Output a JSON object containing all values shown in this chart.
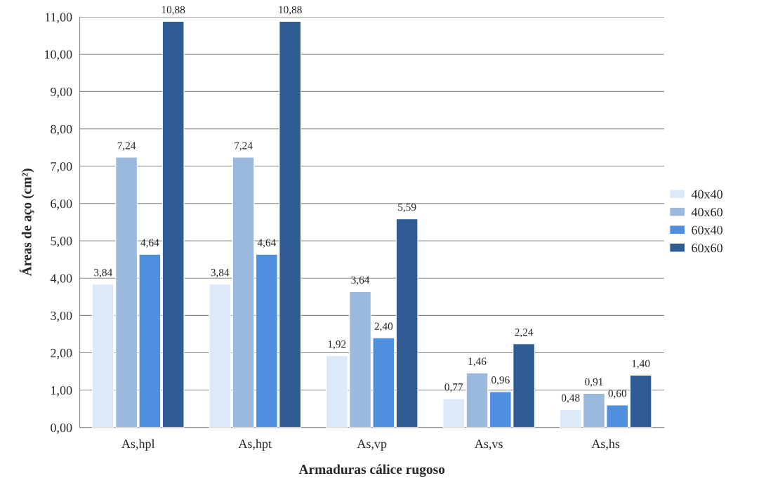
{
  "chart_data": {
    "type": "bar",
    "xlabel": "Armaduras cálice rugoso",
    "ylabel": "Áreas de aço (cm²)",
    "categories": [
      "As,hpl",
      "As,hpt",
      "As,vp",
      "As,vs",
      "As,hs"
    ],
    "series": [
      {
        "name": "40x40",
        "color": "#dce9f8",
        "values": [
          3.84,
          3.84,
          1.92,
          0.77,
          0.48
        ],
        "value_labels": [
          "3,84",
          "3,84",
          "1,92",
          "0,77",
          "0,48"
        ]
      },
      {
        "name": "40x60",
        "color": "#9bb8dd",
        "values": [
          7.24,
          7.24,
          3.64,
          1.46,
          0.91
        ],
        "value_labels": [
          "7,24",
          "7,24",
          "3,64",
          "1,46",
          "0,91"
        ]
      },
      {
        "name": "60x40",
        "color": "#4f8fe0",
        "values": [
          4.64,
          4.64,
          2.4,
          0.96,
          0.6
        ],
        "value_labels": [
          "4,64",
          "4,64",
          "2,40",
          "0,96",
          "0,60"
        ]
      },
      {
        "name": "60x60",
        "color": "#2f5c94",
        "values": [
          10.88,
          10.88,
          5.59,
          2.24,
          1.4
        ],
        "value_labels": [
          "10,88",
          "10,88",
          "5,59",
          "2,24",
          "1,40"
        ]
      }
    ],
    "ylim": [
      0,
      11
    ],
    "yticks": [
      {
        "value": 0,
        "label": "0,00"
      },
      {
        "value": 1,
        "label": "1,00"
      },
      {
        "value": 2,
        "label": "2,00"
      },
      {
        "value": 3,
        "label": "3,00"
      },
      {
        "value": 4,
        "label": "4,00"
      },
      {
        "value": 5,
        "label": "5,00"
      },
      {
        "value": 6,
        "label": "6,00"
      },
      {
        "value": 7,
        "label": "7,00"
      },
      {
        "value": 8,
        "label": "8,00"
      },
      {
        "value": 9,
        "label": "9,00"
      },
      {
        "value": 10,
        "label": "10,00"
      },
      {
        "value": 11,
        "label": "11,00"
      }
    ],
    "grid": "y",
    "legend": "right"
  }
}
